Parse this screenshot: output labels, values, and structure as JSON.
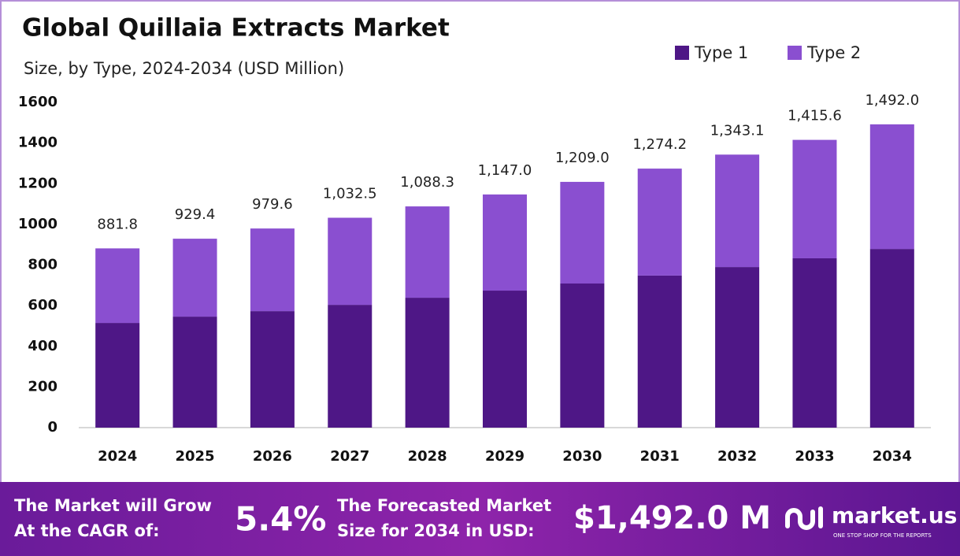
{
  "chart_data": {
    "type": "stacked_bar",
    "title": "Global Quillaia Extracts Market",
    "subtitle": "Size, by Type, 2024-2034 (USD Million)",
    "categories": [
      "2024",
      "2025",
      "2026",
      "2027",
      "2028",
      "2029",
      "2030",
      "2031",
      "2032",
      "2033",
      "2034"
    ],
    "series": [
      {
        "name": "Type 1",
        "color": "#4e1786",
        "values": [
          515,
          546,
          573,
          604,
          639,
          674,
          709,
          748,
          790,
          833,
          879
        ]
      },
      {
        "name": "Type 2",
        "color": "#8a4fd0",
        "values": [
          366.8,
          383.4,
          406.6,
          428.5,
          449.3,
          473,
          500,
          526.2,
          553.1,
          582.6,
          613
        ]
      }
    ],
    "totals": {
      "values": [
        881.8,
        929.4,
        979.6,
        1032.5,
        1088.3,
        1147.0,
        1209.0,
        1274.2,
        1343.1,
        1415.6,
        1492.0
      ],
      "value_labels": [
        "881.8",
        "929.4",
        "979.6",
        "1,032.5",
        "1,088.3",
        "1,147.0",
        "1,209.0",
        "1,274.2",
        "1,343.1",
        "1,415.6",
        "1,492.0"
      ]
    },
    "ylim": [
      0,
      1600
    ],
    "yticks": [
      0,
      200,
      400,
      600,
      800,
      1000,
      1200,
      1400,
      1600
    ],
    "grid": false,
    "legend": "top-right"
  },
  "footer": {
    "cagr_label": [
      "The Market will Grow",
      "At the CAGR of:"
    ],
    "cagr": "5.4%",
    "forecast_label": [
      "The Forecasted Market",
      "Size for 2034 in USD:"
    ],
    "forecast": "$1,492.0 M",
    "brand": "market.us",
    "tagline": "ONE STOP SHOP FOR THE REPORTS"
  }
}
